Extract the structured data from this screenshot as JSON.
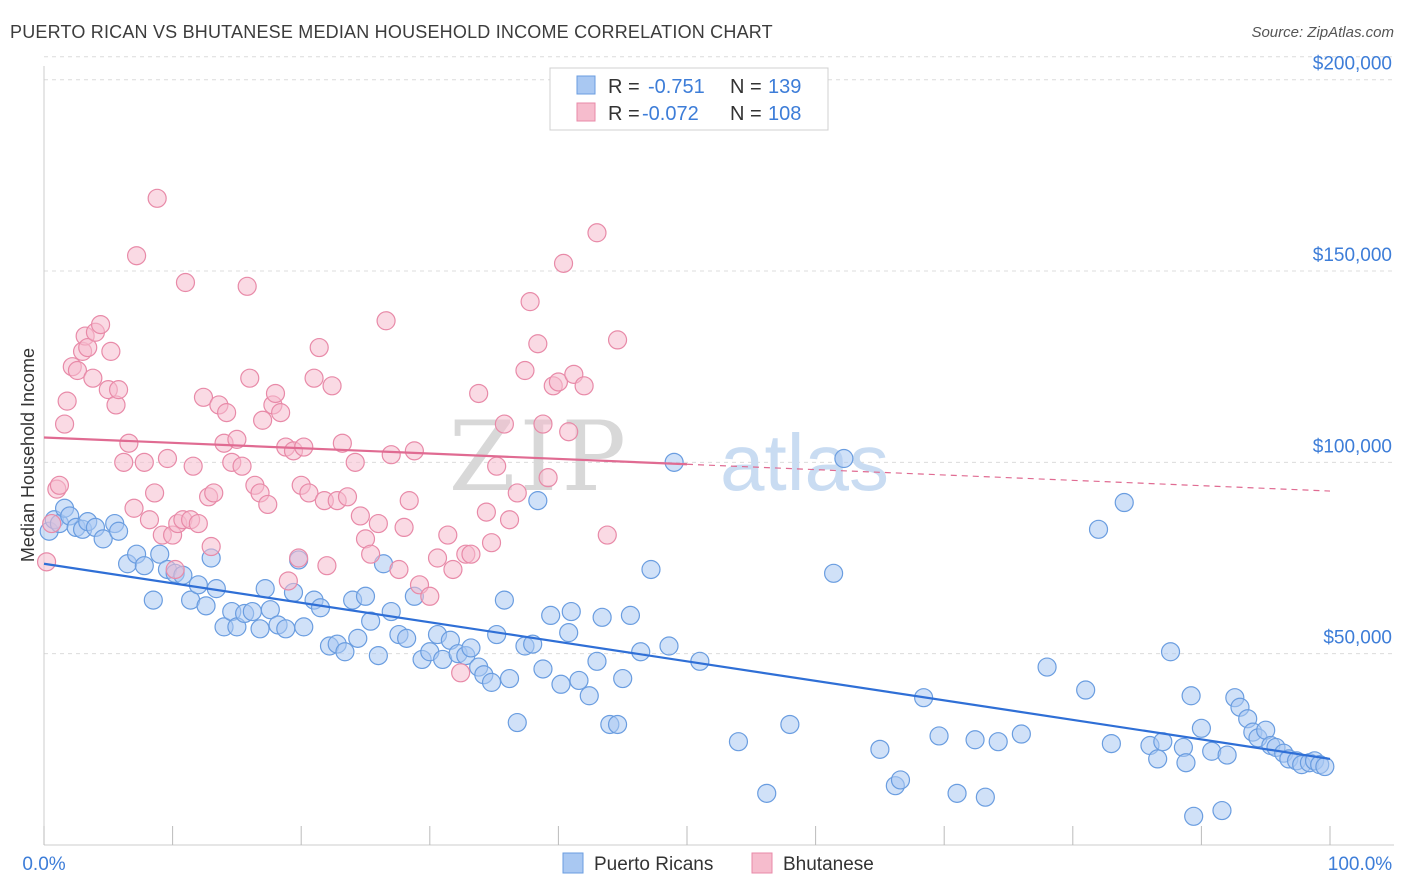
{
  "title": "PUERTO RICAN VS BHUTANESE MEDIAN HOUSEHOLD INCOME CORRELATION CHART",
  "source": "Source: ZipAtlas.com",
  "watermark": {
    "left": "ZIP",
    "right": "atlas"
  },
  "colors": {
    "blue_fill": "#a9c8f2",
    "blue_stroke": "#6a9de0",
    "blue_line": "#2f6fd6",
    "pink_fill": "#f6bccd",
    "pink_stroke": "#e88aa8",
    "pink_line": "#e06b92",
    "label_blue": "#3d7dd8",
    "grid": "#dcdcdc"
  },
  "legend_top": {
    "rows": [
      {
        "r_label": "R =",
        "r_value": "-0.751",
        "n_label": "N =",
        "n_value": "139"
      },
      {
        "r_label": "R =",
        "r_value": "-0.072",
        "n_label": "N =",
        "n_value": "108"
      }
    ]
  },
  "chart_data": {
    "type": "scatter",
    "title": "PUERTO RICAN VS BHUTANESE MEDIAN HOUSEHOLD INCOME CORRELATION CHART",
    "xlabel": "",
    "ylabel": "Median Household Income",
    "xlim": [
      0,
      100
    ],
    "ylim": [
      0,
      210000
    ],
    "x_tick_labels": [
      "0.0%",
      "100.0%"
    ],
    "y_ticks": [
      50000,
      100000,
      150000,
      200000
    ],
    "y_tick_labels": [
      "$50,000",
      "$100,000",
      "$150,000",
      "$200,000"
    ],
    "grid": "horizontal dashed",
    "legend": "bottom-center",
    "series": [
      {
        "name": "Puerto Ricans",
        "r": -0.751,
        "n": 139,
        "trend": {
          "x0": 0,
          "y0": 73500,
          "x1": 100,
          "y1": 22500,
          "dashed_from": null
        },
        "points": [
          [
            0.4,
            82000
          ],
          [
            0.8,
            85000
          ],
          [
            1.2,
            84000
          ],
          [
            1.6,
            88000
          ],
          [
            2,
            86000
          ],
          [
            2.5,
            83000
          ],
          [
            3,
            82500
          ],
          [
            3.4,
            84500
          ],
          [
            4,
            83000
          ],
          [
            4.6,
            80000
          ],
          [
            5.5,
            84000
          ],
          [
            5.8,
            82000
          ],
          [
            6.5,
            73500
          ],
          [
            7.2,
            76000
          ],
          [
            7.8,
            73000
          ],
          [
            8.5,
            64000
          ],
          [
            9,
            76000
          ],
          [
            9.6,
            72000
          ],
          [
            10.2,
            71000
          ],
          [
            10.8,
            70500
          ],
          [
            11.4,
            64000
          ],
          [
            12,
            68000
          ],
          [
            12.6,
            62500
          ],
          [
            13,
            75000
          ],
          [
            13.4,
            67000
          ],
          [
            14,
            57000
          ],
          [
            14.6,
            61000
          ],
          [
            15,
            57000
          ],
          [
            15.6,
            60500
          ],
          [
            16.2,
            61000
          ],
          [
            16.8,
            56500
          ],
          [
            17.2,
            67000
          ],
          [
            17.6,
            61500
          ],
          [
            18.2,
            57500
          ],
          [
            18.8,
            56500
          ],
          [
            19.4,
            66000
          ],
          [
            19.8,
            74500
          ],
          [
            20.2,
            57000
          ],
          [
            21,
            64000
          ],
          [
            21.5,
            62000
          ],
          [
            22.2,
            52000
          ],
          [
            22.8,
            52500
          ],
          [
            23.4,
            50500
          ],
          [
            24,
            64000
          ],
          [
            24.4,
            54000
          ],
          [
            25,
            65000
          ],
          [
            25.4,
            58500
          ],
          [
            26,
            49500
          ],
          [
            26.4,
            73500
          ],
          [
            27,
            61000
          ],
          [
            27.6,
            55000
          ],
          [
            28.2,
            54000
          ],
          [
            28.8,
            65000
          ],
          [
            29.4,
            48500
          ],
          [
            30,
            50500
          ],
          [
            30.6,
            55000
          ],
          [
            31,
            48500
          ],
          [
            31.6,
            53500
          ],
          [
            32.2,
            50000
          ],
          [
            32.8,
            49500
          ],
          [
            33.2,
            51500
          ],
          [
            33.8,
            46500
          ],
          [
            34.2,
            44500
          ],
          [
            34.8,
            42500
          ],
          [
            35.2,
            55000
          ],
          [
            35.8,
            64000
          ],
          [
            36.2,
            43500
          ],
          [
            36.8,
            32000
          ],
          [
            37.4,
            52000
          ],
          [
            38,
            52500
          ],
          [
            38.4,
            90000
          ],
          [
            38.8,
            46000
          ],
          [
            39.4,
            60000
          ],
          [
            40.2,
            42000
          ],
          [
            40.8,
            55500
          ],
          [
            41,
            61000
          ],
          [
            41.6,
            43000
          ],
          [
            42.4,
            39000
          ],
          [
            43,
            48000
          ],
          [
            43.4,
            59500
          ],
          [
            44,
            31500
          ],
          [
            44.6,
            31500
          ],
          [
            45,
            43500
          ],
          [
            45.6,
            60000
          ],
          [
            46.4,
            50500
          ],
          [
            47.2,
            72000
          ],
          [
            48.6,
            52000
          ],
          [
            49,
            100000
          ],
          [
            51,
            48000
          ],
          [
            54,
            27000
          ],
          [
            56.2,
            13500
          ],
          [
            58,
            31500
          ],
          [
            61.4,
            71000
          ],
          [
            62.2,
            101000
          ],
          [
            65,
            25000
          ],
          [
            66.2,
            15500
          ],
          [
            66.6,
            17000
          ],
          [
            68.4,
            38500
          ],
          [
            69.6,
            28500
          ],
          [
            71,
            13500
          ],
          [
            72.4,
            27500
          ],
          [
            73.2,
            12500
          ],
          [
            74.2,
            27000
          ],
          [
            76,
            29000
          ],
          [
            78,
            46500
          ],
          [
            81,
            40500
          ],
          [
            82,
            82500
          ],
          [
            83,
            26500
          ],
          [
            84,
            89500
          ],
          [
            86,
            26000
          ],
          [
            86.6,
            22500
          ],
          [
            87,
            27000
          ],
          [
            87.6,
            50500
          ],
          [
            88.6,
            25500
          ],
          [
            88.8,
            21500
          ],
          [
            89.2,
            39000
          ],
          [
            89.4,
            7500
          ],
          [
            90,
            30500
          ],
          [
            90.8,
            24500
          ],
          [
            91.6,
            9000
          ],
          [
            92,
            23500
          ],
          [
            92.6,
            38500
          ],
          [
            93,
            36000
          ],
          [
            93.6,
            33000
          ],
          [
            94,
            29500
          ],
          [
            94.4,
            28000
          ],
          [
            95,
            30000
          ],
          [
            95.4,
            26000
          ],
          [
            95.8,
            25500
          ],
          [
            96.4,
            24000
          ],
          [
            96.8,
            22500
          ],
          [
            97.4,
            22000
          ],
          [
            97.8,
            21000
          ],
          [
            98.4,
            21500
          ],
          [
            98.8,
            22000
          ],
          [
            99.2,
            21000
          ],
          [
            99.6,
            20500
          ]
        ]
      },
      {
        "name": "Bhutanese",
        "r": -0.072,
        "n": 108,
        "trend": {
          "x0": 0,
          "y0": 106500,
          "x1": 100,
          "y1": 92500,
          "dashed_from": 50
        },
        "points": [
          [
            0.2,
            74000
          ],
          [
            0.6,
            84000
          ],
          [
            1,
            93000
          ],
          [
            1.2,
            94000
          ],
          [
            1.6,
            110000
          ],
          [
            1.8,
            116000
          ],
          [
            2.2,
            125000
          ],
          [
            2.6,
            124000
          ],
          [
            3,
            129000
          ],
          [
            3.2,
            133000
          ],
          [
            3.4,
            130000
          ],
          [
            3.8,
            122000
          ],
          [
            4,
            134000
          ],
          [
            4.4,
            136000
          ],
          [
            5,
            119000
          ],
          [
            5.2,
            129000
          ],
          [
            5.6,
            115000
          ],
          [
            5.8,
            119000
          ],
          [
            6.2,
            100000
          ],
          [
            6.6,
            105000
          ],
          [
            7,
            88000
          ],
          [
            7.2,
            154000
          ],
          [
            7.8,
            100000
          ],
          [
            8.2,
            85000
          ],
          [
            8.6,
            92000
          ],
          [
            8.8,
            169000
          ],
          [
            9.2,
            81000
          ],
          [
            9.6,
            101000
          ],
          [
            10,
            81000
          ],
          [
            10.2,
            72000
          ],
          [
            10.4,
            84000
          ],
          [
            10.8,
            85000
          ],
          [
            11,
            147000
          ],
          [
            11.4,
            85000
          ],
          [
            11.6,
            99000
          ],
          [
            12,
            84000
          ],
          [
            12.4,
            117000
          ],
          [
            12.8,
            91000
          ],
          [
            13,
            78000
          ],
          [
            13.2,
            92000
          ],
          [
            13.6,
            115000
          ],
          [
            14,
            105000
          ],
          [
            14.2,
            113000
          ],
          [
            14.6,
            100000
          ],
          [
            15,
            106000
          ],
          [
            15.4,
            99000
          ],
          [
            15.8,
            146000
          ],
          [
            16,
            122000
          ],
          [
            16.4,
            94000
          ],
          [
            16.8,
            92000
          ],
          [
            17,
            111000
          ],
          [
            17.4,
            89000
          ],
          [
            17.8,
            115000
          ],
          [
            18,
            118000
          ],
          [
            18.4,
            113000
          ],
          [
            18.8,
            104000
          ],
          [
            19,
            69000
          ],
          [
            19.4,
            103000
          ],
          [
            19.8,
            75000
          ],
          [
            20,
            94000
          ],
          [
            20.2,
            104000
          ],
          [
            20.6,
            92000
          ],
          [
            21,
            122000
          ],
          [
            21.4,
            130000
          ],
          [
            21.8,
            90000
          ],
          [
            22,
            73000
          ],
          [
            22.4,
            120000
          ],
          [
            22.8,
            90000
          ],
          [
            23.2,
            105000
          ],
          [
            23.6,
            91000
          ],
          [
            24.2,
            100000
          ],
          [
            24.6,
            86000
          ],
          [
            25,
            80000
          ],
          [
            25.4,
            76000
          ],
          [
            26,
            84000
          ],
          [
            26.6,
            137000
          ],
          [
            27,
            102000
          ],
          [
            27.6,
            72000
          ],
          [
            28,
            83000
          ],
          [
            28.4,
            90000
          ],
          [
            28.8,
            103000
          ],
          [
            29.2,
            68000
          ],
          [
            30,
            65000
          ],
          [
            30.6,
            75000
          ],
          [
            31.4,
            81000
          ],
          [
            31.8,
            72000
          ],
          [
            32.4,
            45000
          ],
          [
            32.8,
            76000
          ],
          [
            33.2,
            76000
          ],
          [
            33.8,
            118000
          ],
          [
            34.4,
            87000
          ],
          [
            34.8,
            79000
          ],
          [
            35.2,
            99000
          ],
          [
            35.8,
            110000
          ],
          [
            36.2,
            85000
          ],
          [
            36.8,
            92000
          ],
          [
            37.4,
            124000
          ],
          [
            37.8,
            142000
          ],
          [
            38.4,
            131000
          ],
          [
            38.8,
            110000
          ],
          [
            39.2,
            96000
          ],
          [
            39.6,
            120000
          ],
          [
            40,
            121000
          ],
          [
            40.4,
            152000
          ],
          [
            40.8,
            108000
          ],
          [
            41.2,
            123000
          ],
          [
            42,
            120000
          ],
          [
            43,
            160000
          ],
          [
            43.8,
            81000
          ],
          [
            44.6,
            132000
          ]
        ]
      }
    ]
  },
  "bottom_legend": [
    "Puerto Ricans",
    "Bhutanese"
  ]
}
